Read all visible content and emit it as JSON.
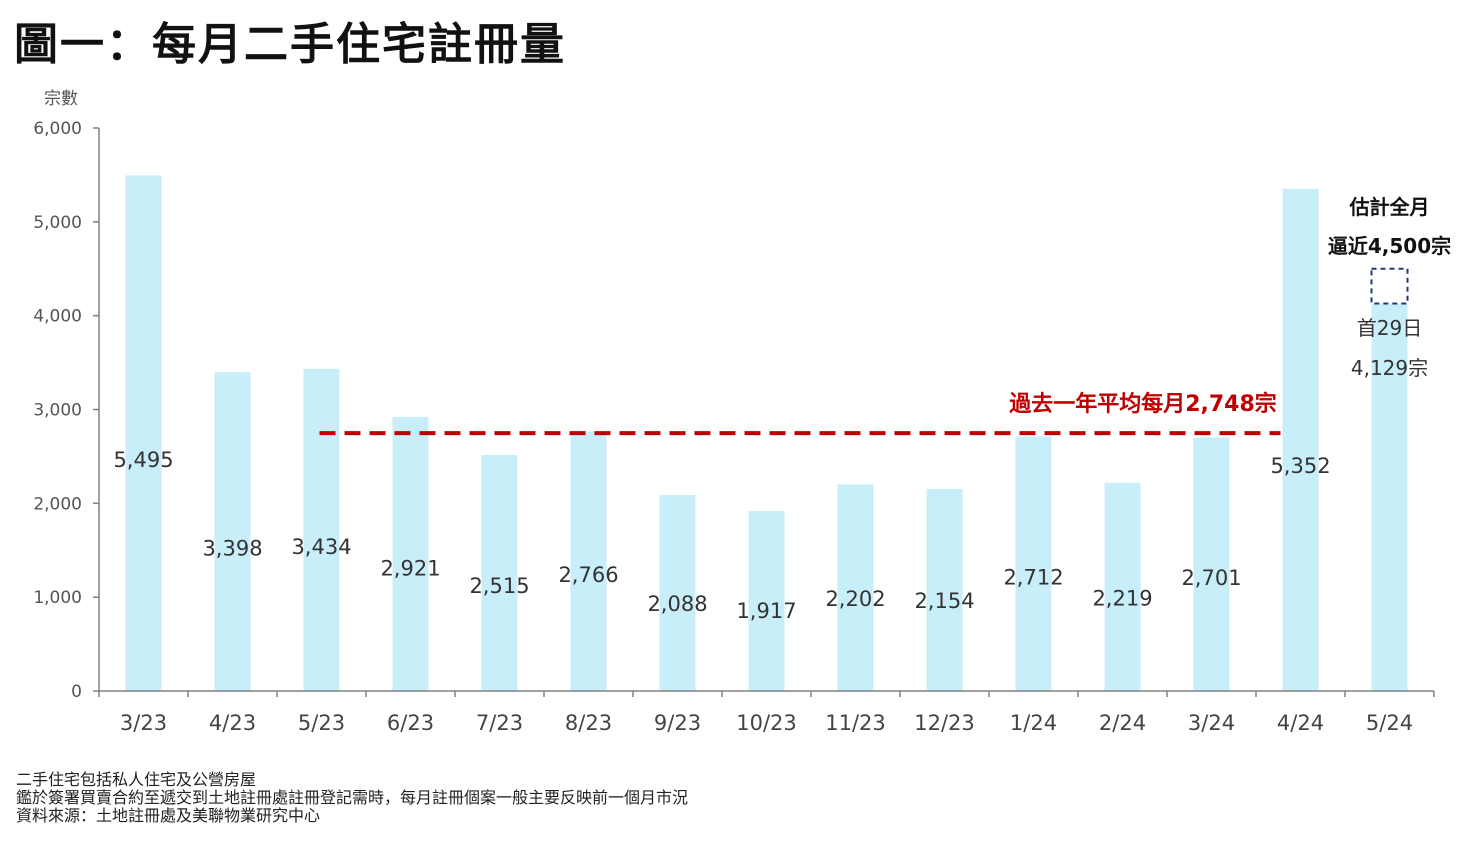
{
  "title": "圖一：每月二手住宅註冊量",
  "chart_data": {
    "type": "bar",
    "ylabel": "宗數",
    "ylim": [
      0,
      6000
    ],
    "yticks": [
      0,
      1000,
      2000,
      3000,
      4000,
      5000,
      6000
    ],
    "ytick_labels": [
      "0",
      "1,000",
      "2,000",
      "3,000",
      "4,000",
      "5,000",
      "6,000"
    ],
    "categories": [
      "3/23",
      "4/23",
      "5/23",
      "6/23",
      "7/23",
      "8/23",
      "9/23",
      "10/23",
      "11/23",
      "12/23",
      "1/24",
      "2/24",
      "3/24",
      "4/24",
      "5/24"
    ],
    "values": [
      5495,
      3398,
      3434,
      2921,
      2515,
      2766,
      2088,
      1917,
      2202,
      2154,
      2712,
      2219,
      2701,
      5352,
      4129
    ],
    "value_labels": [
      "5,495",
      "3,398",
      "3,434",
      "2,921",
      "2,515",
      "2,766",
      "2,088",
      "1,917",
      "2,202",
      "2,154",
      "2,712",
      "2,219",
      "2,701",
      "5,352",
      ""
    ],
    "bar_color": "#c8eefa",
    "average": {
      "value": 2748,
      "label": "過去一年平均每月2,748宗",
      "color": "#c00000"
    },
    "estimate": {
      "value": 4500,
      "line1": "估計全月",
      "line2": "逼近4,500宗",
      "partial_line1": "首29日",
      "partial_line2": "4,129宗",
      "box_color": "#1f3a7a"
    }
  },
  "notes": [
    "二手住宅包括私人住宅及公營房屋",
    "鑑於簽署買賣合約至遞交到土地註冊處註冊登記需時，每月註冊個案一般主要反映前一個月市況",
    "資料來源：土地註冊處及美聯物業研究中心"
  ]
}
